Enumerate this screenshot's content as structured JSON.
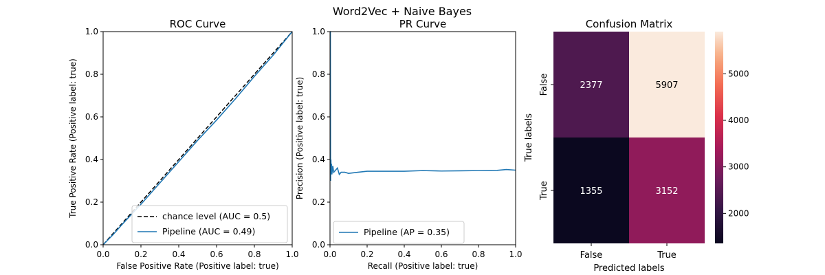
{
  "figure": {
    "suptitle": "Word2Vec + Naive Bayes"
  },
  "chart_data": [
    {
      "type": "line",
      "title": "ROC Curve",
      "xlabel": "False Positive Rate (Positive label: true)",
      "ylabel": "True Positive Rate (Positive label: true)",
      "xlim": [
        0,
        1
      ],
      "ylim": [
        0,
        1
      ],
      "xticks": [
        "0.0",
        "0.2",
        "0.4",
        "0.6",
        "0.8",
        "1.0"
      ],
      "yticks": [
        "0.0",
        "0.2",
        "0.4",
        "0.6",
        "0.8",
        "1.0"
      ],
      "legend_position": "lower-right",
      "series": [
        {
          "name": "chance level (AUC = 0.5)",
          "style": "dashed",
          "color": "#000000",
          "x": [
            0,
            1
          ],
          "y": [
            0,
            1
          ]
        },
        {
          "name": "Pipeline (AUC = 0.49)",
          "style": "solid",
          "color": "#1f77b4",
          "x": [
            0,
            0.05,
            0.1,
            0.2,
            0.3,
            0.4,
            0.5,
            0.6,
            0.7,
            0.8,
            0.9,
            0.95,
            1.0
          ],
          "y": [
            0,
            0.045,
            0.095,
            0.19,
            0.29,
            0.39,
            0.49,
            0.585,
            0.685,
            0.79,
            0.89,
            0.945,
            1.0
          ]
        }
      ]
    },
    {
      "type": "line",
      "title": "PR Curve",
      "xlabel": "Recall (Positive label: true)",
      "ylabel": "Precision (Positive label: true)",
      "xlim": [
        0,
        1
      ],
      "ylim": [
        0,
        1
      ],
      "xticks": [
        "0.0",
        "0.2",
        "0.4",
        "0.6",
        "0.8",
        "1.0"
      ],
      "yticks": [
        "0.0",
        "0.2",
        "0.4",
        "0.6",
        "0.8",
        "1.0"
      ],
      "legend_position": "lower-left",
      "series": [
        {
          "name": "Pipeline (AP = 0.35)",
          "style": "solid",
          "color": "#1f77b4",
          "x": [
            0,
            0.002,
            0.003,
            0.004,
            0.005,
            0.006,
            0.008,
            0.01,
            0.015,
            0.02,
            0.03,
            0.04,
            0.05,
            0.06,
            0.08,
            0.1,
            0.15,
            0.2,
            0.3,
            0.4,
            0.5,
            0.6,
            0.7,
            0.8,
            0.9,
            0.95,
            1.0
          ],
          "y": [
            1.0,
            1.0,
            0.3,
            0.38,
            0.4,
            0.34,
            0.38,
            0.33,
            0.37,
            0.34,
            0.35,
            0.36,
            0.33,
            0.34,
            0.34,
            0.335,
            0.34,
            0.345,
            0.345,
            0.345,
            0.348,
            0.346,
            0.347,
            0.348,
            0.349,
            0.353,
            0.35
          ]
        }
      ]
    },
    {
      "type": "heatmap",
      "title": "Confusion Matrix",
      "xlabel": "Predicted labels",
      "ylabel": "True labels",
      "x_categories": [
        "False",
        "True"
      ],
      "y_categories": [
        "False",
        "True"
      ],
      "values": [
        [
          2377,
          5907
        ],
        [
          1355,
          3152
        ]
      ],
      "colorbar_ticks": [
        2000,
        3000,
        4000,
        5000
      ],
      "colormap": "rocket"
    }
  ]
}
